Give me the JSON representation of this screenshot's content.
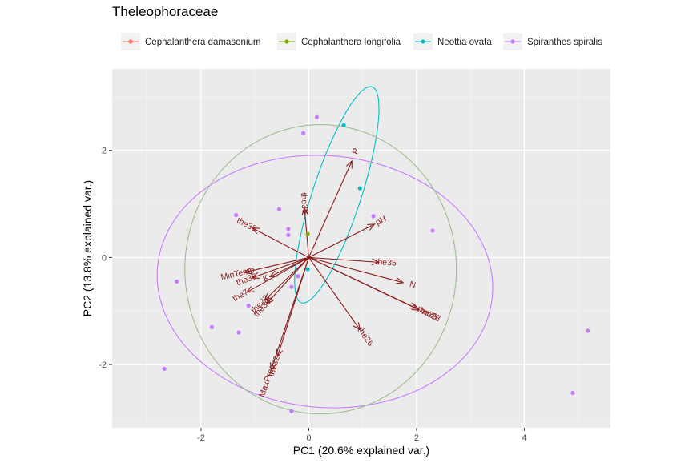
{
  "chart_data": {
    "type": "scatter",
    "subtype": "pca-biplot",
    "title": "Theleophoraceae",
    "xlabel": "PC1 (20.6% explained var.)",
    "ylabel": "PC2 (13.8% explained var.)",
    "xlim": [
      -3.65,
      5.6
    ],
    "ylim": [
      -3.18,
      3.52
    ],
    "x_ticks": [
      -2,
      0,
      2,
      4
    ],
    "y_ticks": [
      -2,
      0,
      2
    ],
    "grid": true,
    "legend_position": "top",
    "series": [
      {
        "name": "Cephalanthera damasonium",
        "color": "#F8766D",
        "points": []
      },
      {
        "name": "Cephalanthera longifolia",
        "color": "#7CAE00",
        "points": [
          [
            -0.02,
            0.44
          ]
        ]
      },
      {
        "name": "Neottia ovata",
        "color": "#00BFC4",
        "points": [
          [
            0.65,
            2.47
          ],
          [
            0.95,
            1.29
          ],
          [
            -0.02,
            -0.22
          ]
        ]
      },
      {
        "name": "Spiranthes spiralis",
        "color": "#C77CFF",
        "points": [
          [
            0.15,
            2.62
          ],
          [
            -0.1,
            2.32
          ],
          [
            -0.55,
            0.9
          ],
          [
            -1.35,
            0.79
          ],
          [
            -0.38,
            0.53
          ],
          [
            -0.38,
            0.42
          ],
          [
            1.2,
            0.77
          ],
          [
            2.3,
            0.5
          ],
          [
            -2.45,
            -0.45
          ],
          [
            -0.2,
            -0.35
          ],
          [
            -0.32,
            -0.55
          ],
          [
            -1.12,
            -0.9
          ],
          [
            -1.8,
            -1.3
          ],
          [
            -1.3,
            -1.4
          ],
          [
            -2.68,
            -2.08
          ],
          [
            -0.32,
            -2.87
          ],
          [
            4.9,
            -2.53
          ],
          [
            5.18,
            -1.37
          ]
        ]
      }
    ],
    "ellipses": [
      {
        "series": "Neottia ovata",
        "color": "#00BFC4",
        "cx": 0.52,
        "cy": 1.17,
        "rx": 2.12,
        "ry": 0.45,
        "angle_deg": 72
      },
      {
        "series": "Spiranthes spiralis",
        "color": "#C77CFF",
        "cx": 0.3,
        "cy": -0.45,
        "rx": 3.12,
        "ry": 2.35,
        "angle_deg": -5
      },
      {
        "series": "Cephalanthera longifolia",
        "color": "#9DBE91",
        "cx": 0.22,
        "cy": -0.22,
        "rx": 2.52,
        "ry": 2.7,
        "angle_deg": 0
      }
    ],
    "loadings": [
      {
        "name": "P",
        "x": 0.8,
        "y": 1.8
      },
      {
        "name": "the38",
        "x": -0.08,
        "y": 0.92
      },
      {
        "name": "pH",
        "x": 1.22,
        "y": 0.62
      },
      {
        "name": "the33",
        "x": -1.05,
        "y": 0.55
      },
      {
        "name": "the35",
        "x": 1.3,
        "y": -0.09
      },
      {
        "name": "N",
        "x": 1.75,
        "y": -0.47
      },
      {
        "name": "the28",
        "x": 2.05,
        "y": -0.98
      },
      {
        "name": "the29",
        "x": 2.0,
        "y": -0.95
      },
      {
        "name": "the26",
        "x": 0.95,
        "y": -1.35
      },
      {
        "name": "the32",
        "x": -0.58,
        "y": -1.85
      },
      {
        "name": "MaxPrec",
        "x": -0.7,
        "y": -2.1
      },
      {
        "name": "MinTemp",
        "x": -1.2,
        "y": -0.28
      },
      {
        "name": "the36",
        "x": -1.05,
        "y": -0.38
      },
      {
        "name": "K",
        "x": -0.72,
        "y": -0.36
      },
      {
        "name": "the7",
        "x": -1.15,
        "y": -0.65
      },
      {
        "name": "the27",
        "x": -0.82,
        "y": -0.8
      },
      {
        "name": "the30",
        "x": -0.78,
        "y": -0.86
      }
    ]
  }
}
